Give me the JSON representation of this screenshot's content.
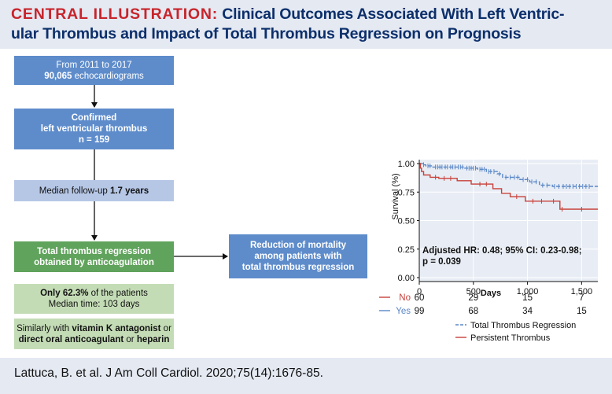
{
  "header": {
    "label": "CENTRAL ILLUSTRATION:",
    "title_line1": "Clinical Outcomes Associated With Left Ventric-",
    "title_line2": "ular Thrombus and Impact of Total Thrombus Regression on Prognosis"
  },
  "flow": {
    "box1": {
      "line1": "From 2011 to 2017",
      "bold": "90,065",
      "rest": " echocardiograms"
    },
    "box2": {
      "line1": "Confirmed",
      "line2": "left ventricular thrombus",
      "line3": "n = 159"
    },
    "box3": {
      "prefix": "Median follow-up ",
      "bold": "1.7 years"
    },
    "box4": {
      "line1": "Total thrombus regression",
      "line2": "obtained by anticoagulation"
    },
    "box5": {
      "prefix": "Only ",
      "bold": "62.3%",
      "suffix": " of the patients",
      "line2": "Median time: 103 days"
    },
    "box6": {
      "line1": "Similarly with ",
      "bold1": "vitamin K antagonist",
      "or1": " or",
      "bold2": "direct oral anticoagulant",
      "or2": " or ",
      "bold3": "heparin"
    },
    "box7": {
      "line1": "Reduction of mortality",
      "line2": "among patients with",
      "line3": "total thrombus regression"
    }
  },
  "chart_data": {
    "type": "line",
    "ylabel": "Survival (%)",
    "xlabel": "Days",
    "xlim": [
      0,
      1650
    ],
    "ylim": [
      0,
      1.0
    ],
    "x_ticks": [
      {
        "v": 0,
        "label": "0"
      },
      {
        "v": 500,
        "label": "500"
      },
      {
        "v": 1000,
        "label": "1,000"
      },
      {
        "v": 1500,
        "label": "1,500"
      }
    ],
    "y_ticks": [
      {
        "v": 0,
        "label": "0.00"
      },
      {
        "v": 0.25,
        "label": "0.25"
      },
      {
        "v": 0.5,
        "label": "0.50"
      },
      {
        "v": 0.75,
        "label": "0.75"
      },
      {
        "v": 1.0,
        "label": "1.00"
      }
    ],
    "annotation_line1": "Adjusted HR: 0.48; 95% CI: 0.23-0.98;",
    "annotation_line2": "p = 0.039",
    "series": [
      {
        "name": "Total Thrombus Regression",
        "color": "#5b87c7",
        "dashed": true,
        "points": [
          [
            0,
            1.0
          ],
          [
            30,
            1.0
          ],
          [
            30,
            0.99
          ],
          [
            60,
            0.99
          ],
          [
            60,
            0.98
          ],
          [
            120,
            0.98
          ],
          [
            120,
            0.97
          ],
          [
            420,
            0.97
          ],
          [
            420,
            0.96
          ],
          [
            540,
            0.96
          ],
          [
            540,
            0.95
          ],
          [
            620,
            0.95
          ],
          [
            620,
            0.93
          ],
          [
            720,
            0.93
          ],
          [
            720,
            0.91
          ],
          [
            770,
            0.91
          ],
          [
            770,
            0.88
          ],
          [
            930,
            0.88
          ],
          [
            930,
            0.86
          ],
          [
            1020,
            0.86
          ],
          [
            1020,
            0.84
          ],
          [
            1110,
            0.84
          ],
          [
            1110,
            0.81
          ],
          [
            1230,
            0.81
          ],
          [
            1230,
            0.8
          ],
          [
            1650,
            0.8
          ]
        ],
        "censors": [
          40,
          80,
          100,
          150,
          170,
          190,
          210,
          240,
          260,
          290,
          310,
          330,
          360,
          380,
          400,
          440,
          460,
          480,
          500,
          520,
          560,
          580,
          600,
          640,
          660,
          690,
          740,
          800,
          840,
          880,
          910,
          960,
          1000,
          1040,
          1080,
          1140,
          1180,
          1250,
          1290,
          1330,
          1360,
          1390,
          1420,
          1450,
          1480,
          1510,
          1540,
          1570
        ]
      },
      {
        "name": "Persistent Thrombus",
        "color": "#c8403a",
        "dashed": false,
        "points": [
          [
            0,
            1.0
          ],
          [
            10,
            1.0
          ],
          [
            10,
            0.96
          ],
          [
            20,
            0.96
          ],
          [
            20,
            0.93
          ],
          [
            40,
            0.93
          ],
          [
            40,
            0.9
          ],
          [
            100,
            0.9
          ],
          [
            100,
            0.88
          ],
          [
            180,
            0.88
          ],
          [
            180,
            0.87
          ],
          [
            350,
            0.87
          ],
          [
            350,
            0.85
          ],
          [
            480,
            0.85
          ],
          [
            480,
            0.82
          ],
          [
            680,
            0.82
          ],
          [
            680,
            0.78
          ],
          [
            760,
            0.78
          ],
          [
            760,
            0.74
          ],
          [
            840,
            0.74
          ],
          [
            840,
            0.71
          ],
          [
            980,
            0.71
          ],
          [
            980,
            0.67
          ],
          [
            1300,
            0.67
          ],
          [
            1300,
            0.6
          ],
          [
            1650,
            0.6
          ]
        ],
        "censors": [
          150,
          230,
          290,
          560,
          620,
          900,
          1050,
          1130,
          1240,
          1320,
          1500
        ]
      }
    ],
    "risk_table": [
      {
        "label": "No",
        "color": "#c8403a",
        "values": [
          "60",
          "29",
          "15",
          "7"
        ]
      },
      {
        "label": "Yes",
        "color": "#5b87c7",
        "values": [
          "99",
          "68",
          "34",
          "15"
        ]
      }
    ]
  },
  "footer": {
    "citation": "Lattuca, B. et al. J Am Coll Cardiol. 2020;75(14):1676-85."
  }
}
